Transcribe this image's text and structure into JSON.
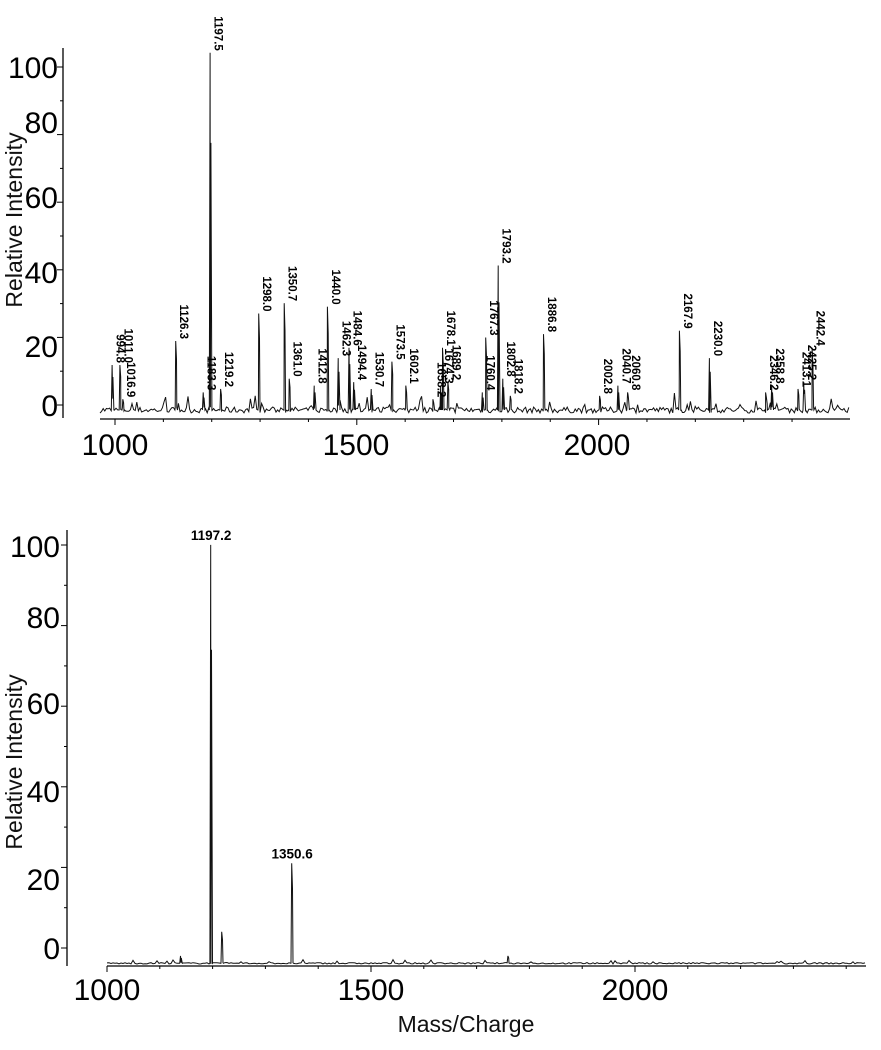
{
  "chart_data": [
    {
      "type": "line",
      "title": "",
      "xlabel": "",
      "ylabel": "Relative Intensity",
      "xlim": [
        970,
        2470
      ],
      "ylim": [
        0,
        100
      ],
      "grid": false,
      "x_ticks": [
        1000,
        1500,
        2000
      ],
      "y_ticks": [
        0,
        20,
        40,
        60,
        80,
        100
      ],
      "peaks": [
        {
          "mz": 994.8,
          "label": "994.8",
          "intensity": 14
        },
        {
          "mz": 1011.0,
          "label": "1011.0",
          "intensity": 14
        },
        {
          "mz": 1016.9,
          "label": "1016.9",
          "intensity": 4
        },
        {
          "mz": 1126.3,
          "label": "1126.3",
          "intensity": 21
        },
        {
          "mz": 1183.3,
          "label": "1183.3",
          "intensity": 6
        },
        {
          "mz": 1197.5,
          "label": "1197.5",
          "intensity": 105
        },
        {
          "mz": 1219.2,
          "label": "1219.2",
          "intensity": 7
        },
        {
          "mz": 1298.0,
          "label": "1298.0",
          "intensity": 29
        },
        {
          "mz": 1350.7,
          "label": "1350.7",
          "intensity": 32
        },
        {
          "mz": 1361.0,
          "label": "1361.0",
          "intensity": 10
        },
        {
          "mz": 1412.8,
          "label": "1412.8",
          "intensity": 8
        },
        {
          "mz": 1440.0,
          "label": "1440.0",
          "intensity": 31
        },
        {
          "mz": 1462.3,
          "label": "1462.3",
          "intensity": 16
        },
        {
          "mz": 1484.6,
          "label": "1484.6",
          "intensity": 19
        },
        {
          "mz": 1494.4,
          "label": "1494.4",
          "intensity": 9
        },
        {
          "mz": 1530.7,
          "label": "1530.7",
          "intensity": 7
        },
        {
          "mz": 1573.5,
          "label": "1573.5",
          "intensity": 15
        },
        {
          "mz": 1602.1,
          "label": "1602.1",
          "intensity": 8
        },
        {
          "mz": 1658.2,
          "label": "1658.2",
          "intensity": 4
        },
        {
          "mz": 1674.3,
          "label": "1674.3",
          "intensity": 8
        },
        {
          "mz": 1678.1,
          "label": "1678.1",
          "intensity": 19
        },
        {
          "mz": 1689.2,
          "label": "1689.2",
          "intensity": 9
        },
        {
          "mz": 1760.4,
          "label": "1760.4",
          "intensity": 6
        },
        {
          "mz": 1767.3,
          "label": "1767.3",
          "intensity": 22
        },
        {
          "mz": 1793.2,
          "label": "1793.2",
          "intensity": 43
        },
        {
          "mz": 1802.8,
          "label": "1802.8",
          "intensity": 10
        },
        {
          "mz": 1818.2,
          "label": "1818.2",
          "intensity": 5
        },
        {
          "mz": 1886.8,
          "label": "1886.8",
          "intensity": 23
        },
        {
          "mz": 2002.8,
          "label": "2002.8",
          "intensity": 5
        },
        {
          "mz": 2040.7,
          "label": "2040.7",
          "intensity": 8
        },
        {
          "mz": 2060.8,
          "label": "2060.8",
          "intensity": 6
        },
        {
          "mz": 2167.9,
          "label": "2167.9",
          "intensity": 24
        },
        {
          "mz": 2230.0,
          "label": "2230.0",
          "intensity": 16
        },
        {
          "mz": 2346.2,
          "label": "2346.2",
          "intensity": 6
        },
        {
          "mz": 2358.8,
          "label": "2358.8",
          "intensity": 8
        },
        {
          "mz": 2413.1,
          "label": "2413.1",
          "intensity": 7
        },
        {
          "mz": 2425.2,
          "label": "2425.2",
          "intensity": 9
        },
        {
          "mz": 2442.4,
          "label": "2442.4",
          "intensity": 19
        }
      ]
    },
    {
      "type": "line",
      "title": "",
      "xlabel": "Mass/Charge",
      "ylabel": "Relative Intensity",
      "xlim": [
        1000,
        2440
      ],
      "ylim": [
        0,
        100
      ],
      "grid": false,
      "x_ticks": [
        1000,
        1500,
        2000
      ],
      "y_ticks": [
        0,
        20,
        40,
        60,
        80,
        100
      ],
      "peaks": [
        {
          "mz": 1197.2,
          "label": "1197.2",
          "intensity": 104
        },
        {
          "mz": 1350.6,
          "label": "1350.6",
          "intensity": 25
        }
      ],
      "minor_peaks": [
        {
          "mz": 1140,
          "intensity": 2
        },
        {
          "mz": 1218,
          "intensity": 8
        },
        {
          "mz": 1760,
          "intensity": 2
        }
      ]
    }
  ],
  "top": {
    "ylabel": "Relative Intensity",
    "ytick_labels": [
      "100",
      "80",
      "60",
      "40",
      "20",
      "0"
    ],
    "xtick_labels": [
      "1000",
      "1500",
      "2000"
    ]
  },
  "bottom": {
    "ylabel": "Relative Intensity",
    "xlabel": "Mass/Charge",
    "ytick_labels": [
      "100",
      "80",
      "60",
      "40",
      "20",
      "0"
    ],
    "xtick_labels": [
      "1000",
      "1500",
      "2000"
    ],
    "peak_labels": [
      "1197.2",
      "1350.6"
    ]
  }
}
